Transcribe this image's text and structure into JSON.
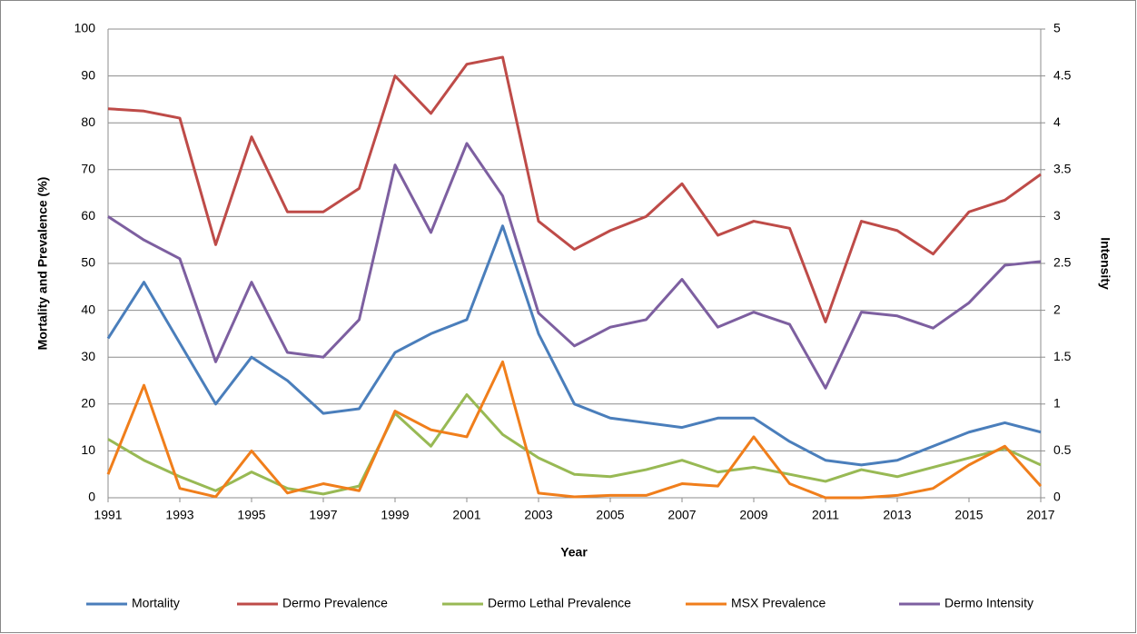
{
  "chart_data": {
    "type": "line",
    "x_label": "Year",
    "y_label": "Mortality and Prevalence (%)",
    "y2_label": "Intensity",
    "x": [
      1991,
      1992,
      1993,
      1994,
      1995,
      1996,
      1997,
      1998,
      1999,
      2000,
      2001,
      2002,
      2003,
      2004,
      2005,
      2006,
      2007,
      2008,
      2009,
      2010,
      2011,
      2012,
      2013,
      2014,
      2015,
      2016,
      2017
    ],
    "xlim": [
      1991,
      2017
    ],
    "xticks": [
      1991,
      1993,
      1995,
      1997,
      1999,
      2001,
      2003,
      2005,
      2007,
      2009,
      2011,
      2013,
      2015,
      2017
    ],
    "ylim": [
      0,
      100
    ],
    "yticks": [
      0,
      10,
      20,
      30,
      40,
      50,
      60,
      70,
      80,
      90,
      100
    ],
    "y2lim": [
      0,
      5
    ],
    "y2ticks": [
      0,
      0.5,
      1,
      1.5,
      2,
      2.5,
      3,
      3.5,
      4,
      4.5,
      5
    ],
    "grid": true,
    "legend": "bottom",
    "series": [
      {
        "name": "Mortality",
        "color": "#4a7ebb",
        "values": [
          34,
          46,
          33,
          20,
          30,
          25,
          18,
          19,
          31,
          35,
          38,
          58,
          35,
          20,
          17,
          16,
          15,
          17,
          17,
          12,
          8,
          7,
          8,
          11,
          14,
          16,
          14
        ]
      },
      {
        "name": "Dermo Prevalence",
        "color": "#be4b48",
        "values": [
          83,
          82.5,
          81,
          54,
          77,
          61,
          61,
          66,
          90,
          82,
          92.5,
          94,
          59,
          53,
          57,
          60,
          67,
          56,
          59,
          57.5,
          37.5,
          59,
          57,
          52,
          61,
          63.5,
          69
        ]
      },
      {
        "name": "Dermo Lethal Prevalence",
        "color": "#98b954",
        "values": [
          12.5,
          8,
          4.5,
          1.5,
          5.5,
          2,
          0.8,
          2.5,
          18,
          11,
          22,
          13.5,
          8.5,
          5,
          4.5,
          6,
          8,
          5.5,
          6.5,
          5,
          3.5,
          6,
          4.5,
          6.5,
          8.5,
          10.5,
          7
        ]
      },
      {
        "name": "MSX Prevalence",
        "color": "#f07e1b",
        "values": [
          5,
          24,
          2,
          0.2,
          10,
          1,
          3,
          1.5,
          18.5,
          14.5,
          13,
          29,
          1,
          0.2,
          0.5,
          0.5,
          3,
          2.5,
          13,
          3,
          0,
          0,
          0.5,
          2,
          7,
          11,
          2.5
        ]
      },
      {
        "name": "Dermo Intensity",
        "color": "#7d5fa0",
        "axis": "y2",
        "values": [
          3,
          2.75,
          2.55,
          1.45,
          2.3,
          1.55,
          1.5,
          1.9,
          3.55,
          2.83,
          3.78,
          3.22,
          1.97,
          1.62,
          1.82,
          1.9,
          2.33,
          1.82,
          1.98,
          1.85,
          1.17,
          1.98,
          1.94,
          1.81,
          2.08,
          2.48,
          2.52
        ]
      }
    ]
  }
}
